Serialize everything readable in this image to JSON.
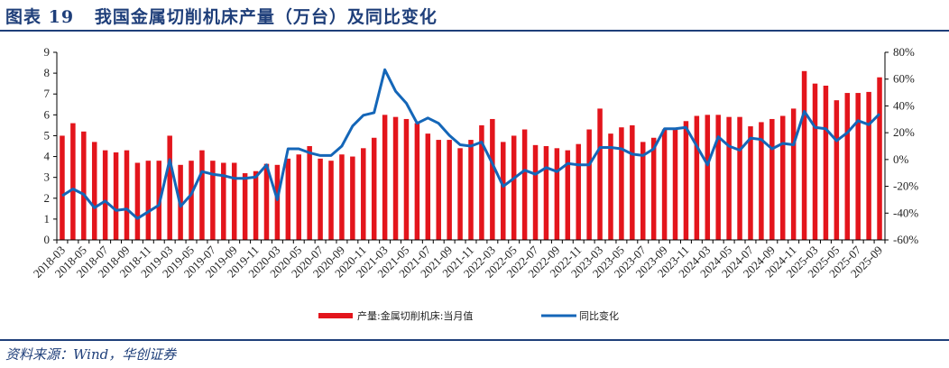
{
  "header": {
    "figure_label": "图表 19",
    "title": "我国金属切削机床产量（万台）及同比变化"
  },
  "footer": {
    "source": "资料来源：Wind，华创证券"
  },
  "colors": {
    "bar": "#e3151c",
    "line": "#1466b8",
    "title": "#1f3f7a"
  },
  "chart_data": {
    "type": "bar+line",
    "title": "我国金属切削机床产量（万台）及同比变化",
    "xlabel": "",
    "ylabel_left": "产量（万台）",
    "ylabel_right": "同比变化",
    "ylim_left": [
      0,
      9
    ],
    "ylim_right": [
      -60,
      80
    ],
    "yticks_left": [
      "0",
      "1",
      "2",
      "3",
      "4",
      "5",
      "6",
      "7",
      "8",
      "9"
    ],
    "yticks_right": [
      "-60%",
      "-40%",
      "-20%",
      "0%",
      "20%",
      "40%",
      "60%",
      "80%"
    ],
    "grid": false,
    "legend_position": "bottom",
    "legend": [
      "产量:金属切削机床:当月值",
      "同比变化"
    ],
    "categories": [
      "2018-03",
      "2018-04",
      "2018-05",
      "2018-06",
      "2018-07",
      "2018-08",
      "2018-09",
      "2018-10",
      "2018-11",
      "2018-12",
      "2019-03",
      "2019-04",
      "2019-05",
      "2019-06",
      "2019-07",
      "2019-08",
      "2019-09",
      "2019-10",
      "2019-11",
      "2019-12",
      "2020-03",
      "2020-04",
      "2020-05",
      "2020-06",
      "2020-07",
      "2020-08",
      "2020-09",
      "2020-10",
      "2020-11",
      "2020-12",
      "2021-03",
      "2021-04",
      "2021-05",
      "2021-06",
      "2021-07",
      "2021-08",
      "2021-09",
      "2021-10",
      "2021-11",
      "2021-12",
      "2022-03",
      "2022-04",
      "2022-05",
      "2022-06",
      "2022-07",
      "2022-08",
      "2022-09",
      "2022-10",
      "2022-11",
      "2022-12",
      "2023-03",
      "2023-04",
      "2023-05",
      "2023-06",
      "2023-07",
      "2023-08",
      "2023-09",
      "2023-10",
      "2023-11",
      "2023-12",
      "2024-03",
      "2024-04",
      "2024-05",
      "2024-06",
      "2024-07",
      "2024-08",
      "2024-09",
      "2024-10",
      "2024-11",
      "2024-12",
      "2025-03",
      "2025-04",
      "2025-05",
      "2025-06",
      "2025-07",
      "2025-08",
      "2025-09"
    ],
    "xtick_labels": [
      "2018-03",
      "2018-05",
      "2018-07",
      "2018-09",
      "2018-11",
      "2019-03",
      "2019-05",
      "2019-07",
      "2019-09",
      "2019-11",
      "2020-03",
      "2020-05",
      "2020-07",
      "2020-09",
      "2020-11",
      "2021-03",
      "2021-05",
      "2021-07",
      "2021-09",
      "2021-11",
      "2022-03",
      "2022-05",
      "2022-07",
      "2022-09",
      "2022-11",
      "2023-03",
      "2023-05",
      "2023-07",
      "2023-09",
      "2023-11",
      "2024-03",
      "2024-05",
      "2024-07",
      "2024-09",
      "2024-11",
      "2025-03",
      "2025-05",
      "2025-07",
      "2025-09"
    ],
    "series": [
      {
        "name": "产量:金属切削机床:当月值",
        "type": "bar",
        "axis": "left",
        "values": [
          5.0,
          5.6,
          5.2,
          4.7,
          4.3,
          4.2,
          4.3,
          3.7,
          3.8,
          3.8,
          5.0,
          3.6,
          3.8,
          4.3,
          3.8,
          3.7,
          3.7,
          3.2,
          3.3,
          3.65,
          3.6,
          3.9,
          4.1,
          4.5,
          3.9,
          3.8,
          4.1,
          4.0,
          4.4,
          4.9,
          6.0,
          5.9,
          5.8,
          5.6,
          5.1,
          4.8,
          4.8,
          4.4,
          4.8,
          5.5,
          5.8,
          4.7,
          5.0,
          5.3,
          4.55,
          4.5,
          4.4,
          4.3,
          4.6,
          5.3,
          6.3,
          5.1,
          5.4,
          5.5,
          4.7,
          4.9,
          5.3,
          5.3,
          5.7,
          5.95,
          6.0,
          6.0,
          5.9,
          5.9,
          5.45,
          5.65,
          5.8,
          5.95,
          6.3,
          8.1,
          7.5,
          7.4,
          6.7,
          7.05,
          7.05,
          7.1,
          7.8
        ]
      },
      {
        "name": "同比变化",
        "type": "line",
        "axis": "right",
        "unit": "%",
        "values": [
          -27,
          -22,
          -26,
          -36,
          -31,
          -38,
          -37,
          -44,
          -39,
          -34,
          0,
          -35,
          -26,
          -9,
          -11,
          -12,
          -14,
          -14,
          -13,
          -4,
          -30,
          8,
          8,
          5,
          3,
          3,
          10,
          25,
          33,
          35,
          67,
          51,
          42,
          27,
          31,
          27,
          18,
          11,
          10,
          13,
          -3,
          -20,
          -14,
          -8,
          -11,
          -6,
          -9,
          -3,
          -4,
          -4,
          9,
          9,
          8,
          4,
          3,
          8,
          23,
          23,
          24,
          10,
          -4,
          17,
          10,
          7,
          16,
          15,
          8,
          12,
          11,
          36,
          24,
          23,
          14,
          20,
          29,
          26,
          34
        ]
      }
    ]
  }
}
